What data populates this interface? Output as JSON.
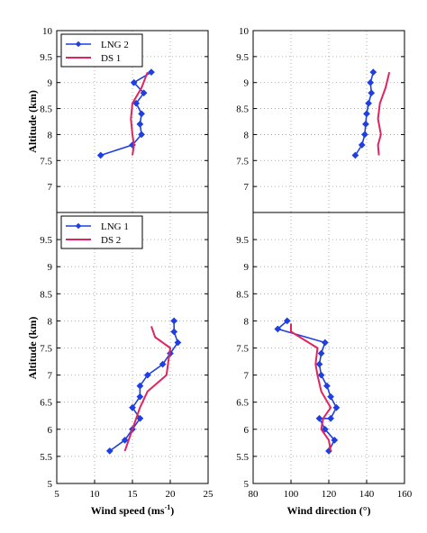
{
  "chart_data": [
    {
      "type": "line",
      "panel": "top-left",
      "xlabel": "",
      "ylabel": "Altitude (km)",
      "xlim": [
        5,
        25
      ],
      "ylim": [
        6.5,
        10
      ],
      "yticks": [
        "7",
        "7.5",
        "8",
        "8.5",
        "9",
        "9.5",
        "10"
      ],
      "legend": {
        "placement": "top-left",
        "entries": [
          "LNG 2",
          "DS 1"
        ]
      },
      "series": [
        {
          "name": "LNG 2",
          "color": "#1f3fe0",
          "marker": "diamond",
          "points": [
            [
              17.5,
              9.2
            ],
            [
              15.2,
              9.0
            ],
            [
              16.5,
              8.8
            ],
            [
              15.5,
              8.6
            ],
            [
              16.2,
              8.4
            ],
            [
              16.0,
              8.2
            ],
            [
              16.2,
              8.0
            ],
            [
              15.0,
              7.8
            ],
            [
              10.8,
              7.6
            ]
          ]
        },
        {
          "name": "DS 1",
          "color": "#e0245e",
          "marker": "none",
          "points": [
            [
              17.0,
              9.2
            ],
            [
              16.2,
              8.9
            ],
            [
              15.0,
              8.6
            ],
            [
              14.8,
              8.3
            ],
            [
              15.0,
              8.0
            ],
            [
              15.2,
              7.8
            ],
            [
              15.0,
              7.6
            ]
          ]
        }
      ]
    },
    {
      "type": "line",
      "panel": "top-right",
      "xlabel": "",
      "ylabel": "",
      "xlim": [
        80,
        160
      ],
      "ylim": [
        6.5,
        10
      ],
      "yticks": [
        "7",
        "7.5",
        "8",
        "8.5",
        "9",
        "9.5",
        "10"
      ],
      "series": [
        {
          "name": "LNG 2",
          "color": "#1f3fe0",
          "marker": "diamond",
          "points": [
            [
              143.5,
              9.2
            ],
            [
              142.0,
              9.0
            ],
            [
              142.5,
              8.8
            ],
            [
              141.0,
              8.6
            ],
            [
              140.0,
              8.4
            ],
            [
              139.5,
              8.2
            ],
            [
              139.0,
              8.0
            ],
            [
              137.5,
              7.8
            ],
            [
              134.0,
              7.6
            ]
          ]
        },
        {
          "name": "DS 1",
          "color": "#e0245e",
          "marker": "none",
          "points": [
            [
              152.0,
              9.2
            ],
            [
              150.0,
              8.9
            ],
            [
              147.0,
              8.6
            ],
            [
              146.0,
              8.3
            ],
            [
              147.5,
              8.0
            ],
            [
              146.0,
              7.8
            ],
            [
              146.5,
              7.6
            ]
          ]
        }
      ]
    },
    {
      "type": "line",
      "panel": "bottom-left",
      "xlabel": "Wind speed (ms",
      "xlabel_sup": "-1",
      "xlabel_tail": ")",
      "ylabel": "Altitude (km)",
      "xlim": [
        5,
        25
      ],
      "ylim": [
        5,
        10
      ],
      "xticks": [
        "5",
        "10",
        "15",
        "20",
        "25"
      ],
      "yticks": [
        "5",
        "5.5",
        "6",
        "6.5",
        "7",
        "7.5",
        "8",
        "8.5",
        "9",
        "9.5"
      ],
      "legend": {
        "placement": "top-left",
        "entries": [
          "LNG 1",
          "DS 2"
        ]
      },
      "series": [
        {
          "name": "LNG 1",
          "color": "#1f3fe0",
          "marker": "diamond",
          "points": [
            [
              20.5,
              8.0
            ],
            [
              20.5,
              7.8
            ],
            [
              21.0,
              7.6
            ],
            [
              20.0,
              7.4
            ],
            [
              19.0,
              7.2
            ],
            [
              17.0,
              7.0
            ],
            [
              16.0,
              6.8
            ],
            [
              16.0,
              6.6
            ],
            [
              15.0,
              6.4
            ],
            [
              16.0,
              6.2
            ],
            [
              15.0,
              6.0
            ],
            [
              14.0,
              5.8
            ],
            [
              12.0,
              5.6
            ]
          ]
        },
        {
          "name": "DS 2",
          "color": "#e0245e",
          "marker": "none",
          "points": [
            [
              17.5,
              7.9
            ],
            [
              18.0,
              7.7
            ],
            [
              20.0,
              7.5
            ],
            [
              19.5,
              7.0
            ],
            [
              17.0,
              6.7
            ],
            [
              16.0,
              6.4
            ],
            [
              15.0,
              6.0
            ],
            [
              14.5,
              5.8
            ],
            [
              14.0,
              5.6
            ]
          ]
        }
      ]
    },
    {
      "type": "line",
      "panel": "bottom-right",
      "xlabel": "Wind direction (°)",
      "ylabel": "",
      "xlim": [
        80,
        160
      ],
      "ylim": [
        5,
        10
      ],
      "xticks": [
        "80",
        "100",
        "120",
        "140",
        "160"
      ],
      "yticks": [
        "5",
        "5.5",
        "6",
        "6.5",
        "7",
        "7.5",
        "8",
        "8.5",
        "9",
        "9.5"
      ],
      "series": [
        {
          "name": "LNG 1",
          "color": "#1f3fe0",
          "marker": "diamond",
          "points": [
            [
              98,
              8.0
            ],
            [
              93,
              7.85
            ],
            [
              118,
              7.6
            ],
            [
              116,
              7.4
            ],
            [
              115,
              7.2
            ],
            [
              116,
              7.0
            ],
            [
              119,
              6.8
            ],
            [
              121,
              6.6
            ],
            [
              124,
              6.4
            ],
            [
              121,
              6.2
            ],
            [
              115,
              6.2
            ],
            [
              118,
              6.0
            ],
            [
              123,
              5.8
            ],
            [
              120,
              5.6
            ]
          ]
        },
        {
          "name": "DS 2",
          "color": "#e0245e",
          "marker": "none",
          "points": [
            [
              100,
              7.95
            ],
            [
              100,
              7.8
            ],
            [
              114,
              7.5
            ],
            [
              113,
              7.2
            ],
            [
              114,
              7.0
            ],
            [
              116,
              6.7
            ],
            [
              121,
              6.4
            ],
            [
              117,
              6.2
            ],
            [
              116,
              6.0
            ],
            [
              120,
              5.8
            ],
            [
              121,
              5.6
            ]
          ]
        }
      ]
    }
  ]
}
